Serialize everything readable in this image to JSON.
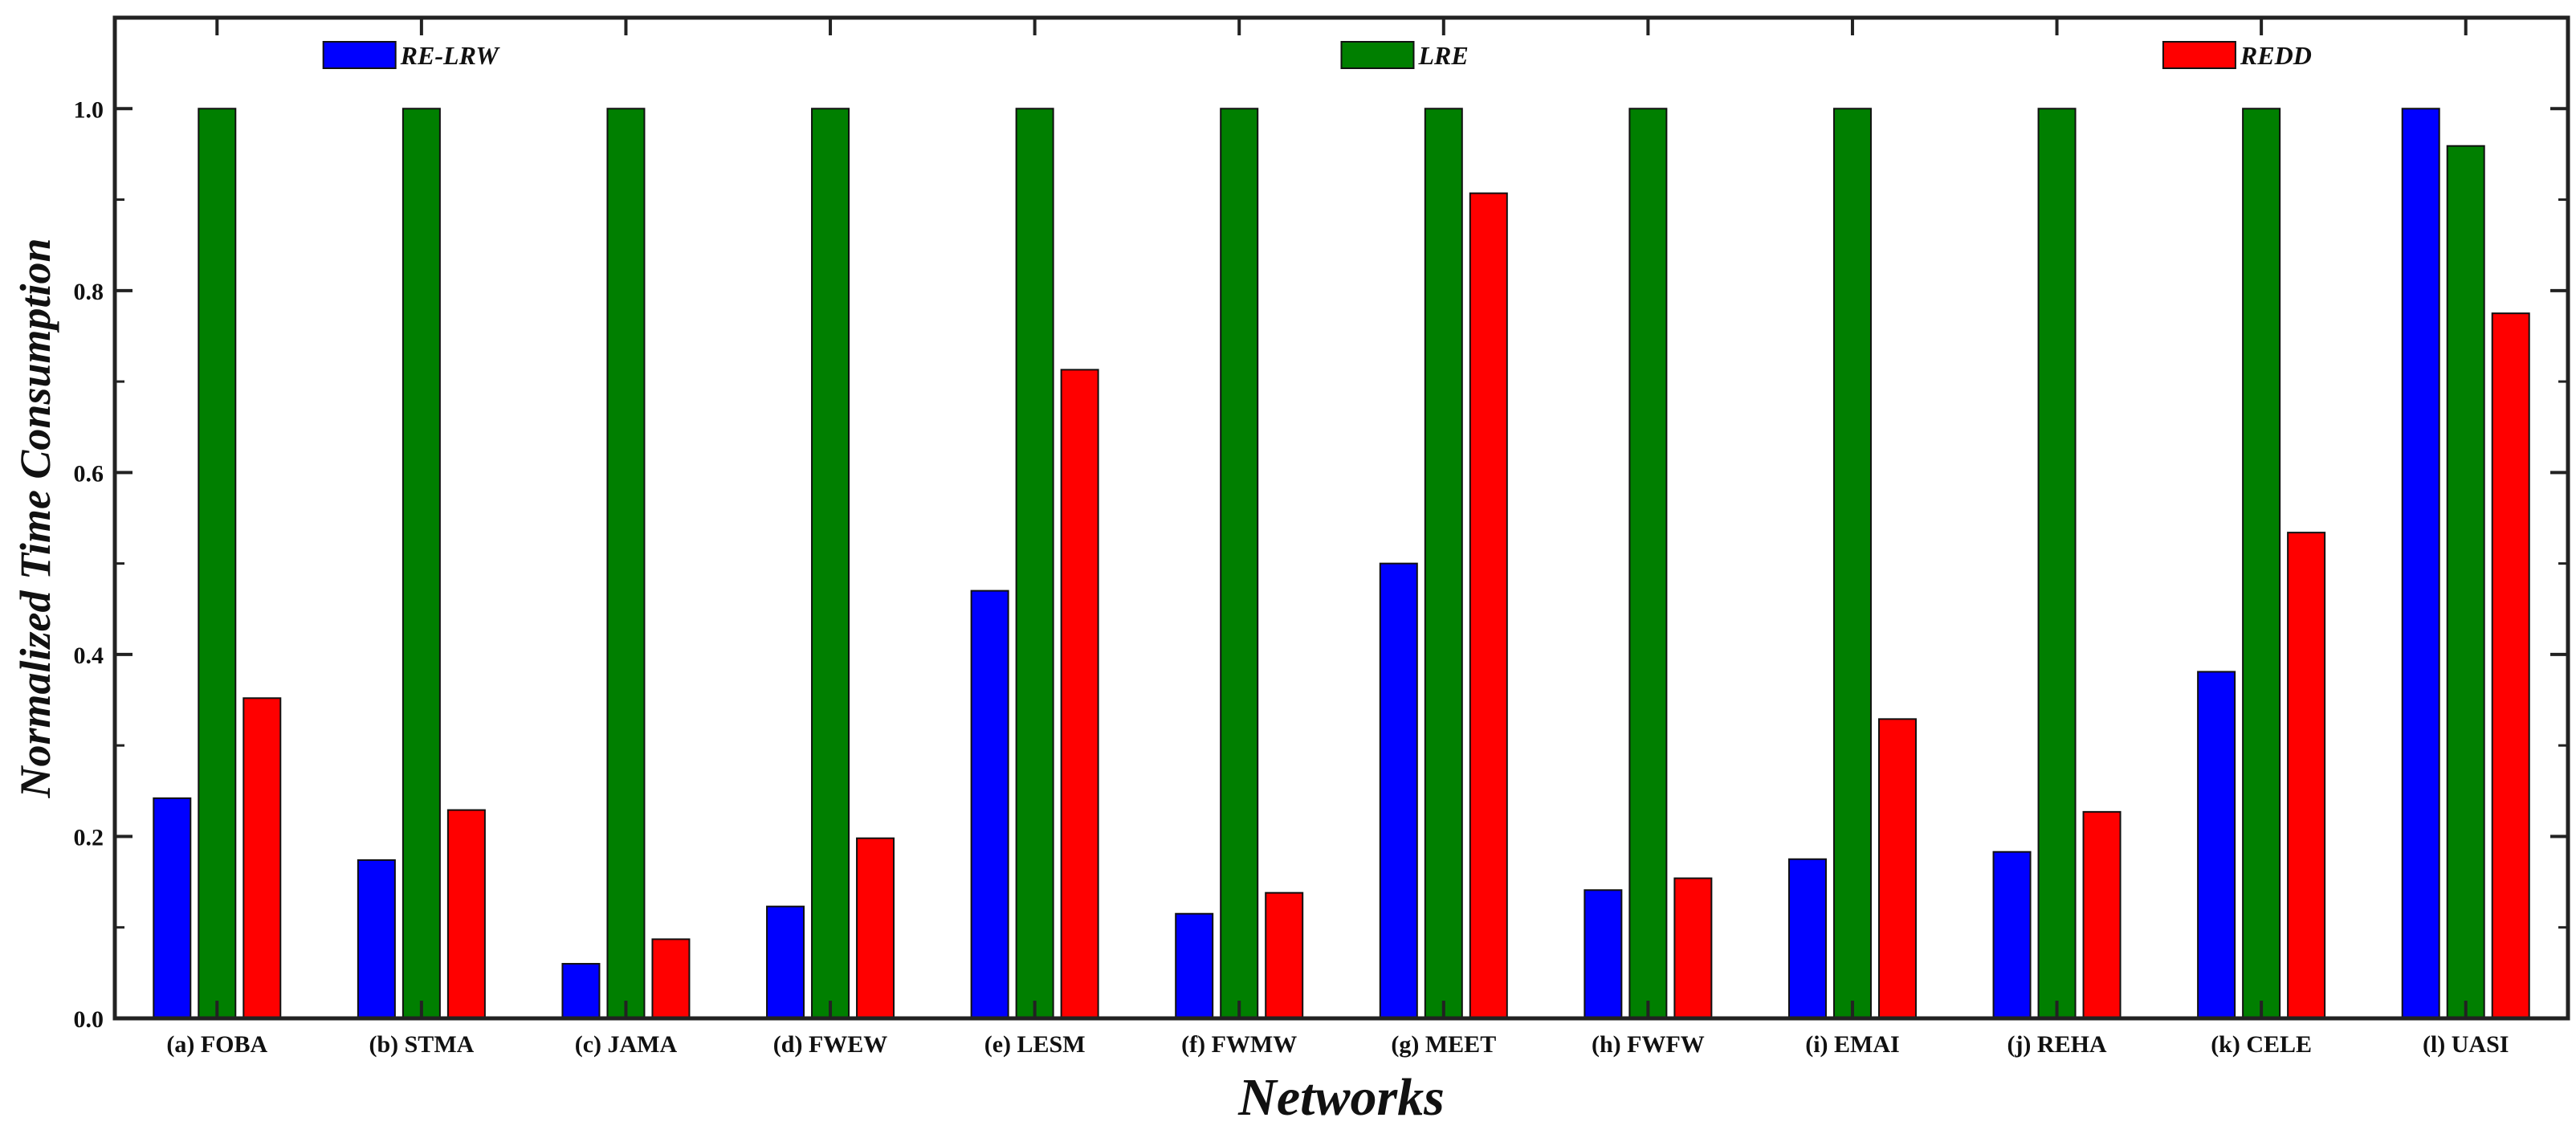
{
  "chart_data": {
    "type": "bar",
    "title": "",
    "xlabel": "Networks",
    "ylabel": "Normalized Time Consumption",
    "ylim": [
      0,
      1.1
    ],
    "yticks": [
      "0.0",
      "0.2",
      "0.4",
      "0.6",
      "0.8",
      "1.0"
    ],
    "ytick_values": [
      0,
      0.2,
      0.4,
      0.6,
      0.8,
      1.0
    ],
    "grid": false,
    "legend_position": "top",
    "categories": [
      "(a) FOBA",
      "(b) STMA",
      "(c) JAMA",
      "(d) FWEW",
      "(e) LESM",
      "(f) FWMW",
      "(g) MEET",
      "(h) FWFW",
      "(i) EMAI",
      "(j) REHA",
      "(k) CELE",
      "(l) UASI"
    ],
    "series": [
      {
        "name": "RE-LRW",
        "color": "#0000ff",
        "values": [
          0.242,
          0.174,
          0.06,
          0.123,
          0.47,
          0.115,
          0.5,
          0.141,
          0.175,
          0.183,
          0.381,
          1.0
        ]
      },
      {
        "name": "LRE",
        "color": "#007f00",
        "values": [
          1.0,
          1.0,
          1.0,
          1.0,
          1.0,
          1.0,
          1.0,
          1.0,
          1.0,
          1.0,
          1.0,
          0.959
        ]
      },
      {
        "name": "REDD",
        "color": "#ff0000",
        "values": [
          0.352,
          0.229,
          0.087,
          0.198,
          0.713,
          0.138,
          0.907,
          0.154,
          0.329,
          0.227,
          0.534,
          0.775
        ]
      }
    ]
  }
}
